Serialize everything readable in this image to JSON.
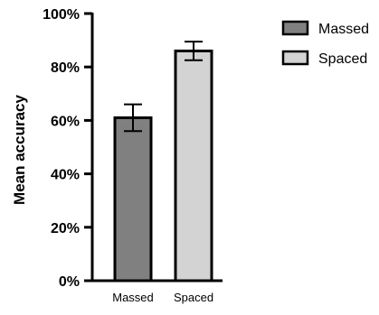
{
  "chart_data": {
    "type": "bar",
    "title": "",
    "xlabel": "",
    "ylabel": "Mean accuracy",
    "categories": [
      "Massed",
      "Spaced"
    ],
    "values": [
      0.61,
      0.86
    ],
    "error": [
      0.05,
      0.035
    ],
    "colors": [
      "#808080",
      "#d3d3d3"
    ],
    "ylim": [
      0,
      1.0
    ],
    "yticks": [
      0,
      0.2,
      0.4,
      0.6,
      0.8,
      1.0
    ],
    "ytick_labels": [
      "0%",
      "20%",
      "40%",
      "60%",
      "80%",
      "100%"
    ],
    "grid": false,
    "legend": {
      "position": "top-right",
      "entries": [
        "Massed",
        "Spaced"
      ]
    }
  }
}
